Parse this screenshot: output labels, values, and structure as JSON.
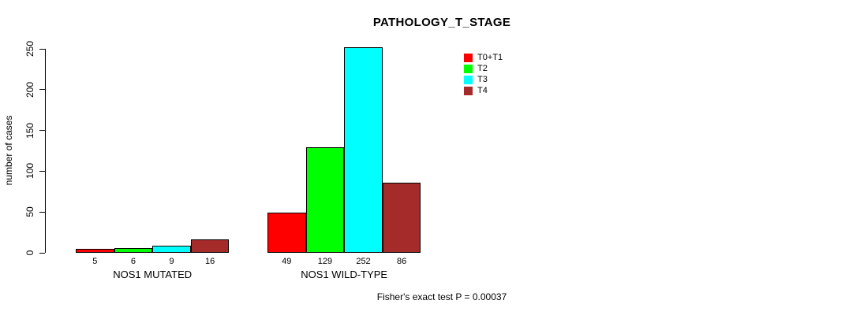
{
  "chart_data": {
    "type": "bar",
    "title": "PATHOLOGY_T_STAGE",
    "ylabel": "number of cases",
    "xlabel": "",
    "ylim": [
      0,
      250
    ],
    "yticks": [
      0,
      50,
      100,
      150,
      200,
      250
    ],
    "categories": [
      "NOS1 MUTATED",
      "NOS1 WILD-TYPE"
    ],
    "series": [
      {
        "name": "T0+T1",
        "color": "#FF0000",
        "values": [
          5,
          49
        ]
      },
      {
        "name": "T2",
        "color": "#00FF00",
        "values": [
          6,
          129
        ]
      },
      {
        "name": "T3",
        "color": "#00FFFF",
        "values": [
          9,
          252
        ]
      },
      {
        "name": "T4",
        "color": "#A52A2A",
        "values": [
          16,
          86
        ]
      }
    ],
    "bar_value_labels_shown": true,
    "annotation": "Fisher's exact test P = 0.00037",
    "legend_position": "top-right",
    "grid": false,
    "bar_border_color": "#000000",
    "axis_color": "#000000",
    "background_color": "#FFFFFF",
    "text_color": "#000000"
  }
}
